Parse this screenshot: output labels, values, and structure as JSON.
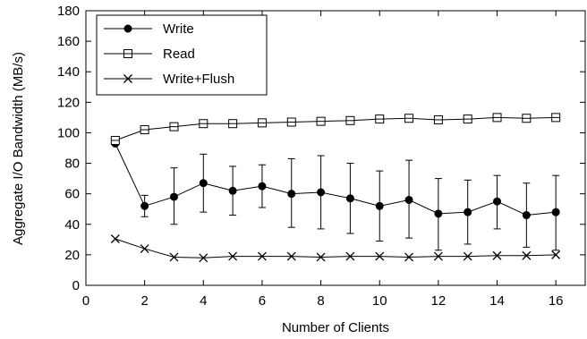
{
  "chart_data": {
    "type": "line",
    "xlabel": "Number of Clients",
    "ylabel": "Aggregate I/O Bandwidth (MB/s)",
    "xlim": [
      0,
      17
    ],
    "ylim": [
      0,
      180
    ],
    "x_ticks": [
      0,
      2,
      4,
      6,
      8,
      10,
      12,
      14,
      16
    ],
    "y_ticks": [
      0,
      20,
      40,
      60,
      80,
      100,
      120,
      140,
      160,
      180
    ],
    "grid": false,
    "legend_position": "top-left",
    "x": [
      1,
      2,
      3,
      4,
      5,
      6,
      7,
      8,
      9,
      10,
      11,
      12,
      13,
      14,
      15,
      16
    ],
    "series": [
      {
        "name": "Write",
        "marker": "filled-circle",
        "color": "#000000",
        "values": [
          93,
          52,
          58,
          67,
          62,
          65,
          60,
          61,
          57,
          52,
          56,
          47,
          48,
          55,
          46,
          48
        ],
        "error_low": [
          92,
          45,
          40,
          48,
          46,
          51,
          38,
          37,
          34,
          29,
          31,
          23,
          27,
          37,
          25,
          23
        ],
        "error_high": [
          94,
          59,
          77,
          86,
          78,
          79,
          83,
          85,
          80,
          75,
          82,
          70,
          69,
          72,
          67,
          72
        ]
      },
      {
        "name": "Read",
        "marker": "open-square",
        "color": "#000000",
        "values": [
          95,
          102,
          104,
          106,
          106,
          106.5,
          107,
          107.5,
          108,
          109,
          109.5,
          108.5,
          109,
          110,
          109.5,
          110
        ]
      },
      {
        "name": "Write+Flush",
        "marker": "x",
        "color": "#000000",
        "values": [
          30.5,
          24,
          18.5,
          18,
          19,
          19,
          19,
          18.5,
          19,
          19,
          18.5,
          19,
          19,
          19.5,
          19.5,
          20
        ]
      }
    ]
  }
}
